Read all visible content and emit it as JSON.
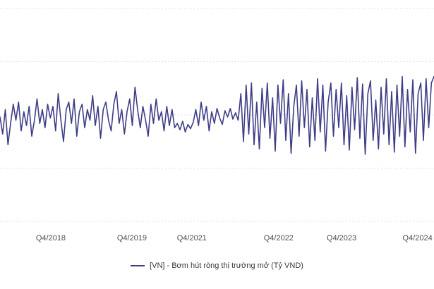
{
  "chart_data": {
    "type": "line",
    "title": "",
    "xlabel": "",
    "ylabel": "",
    "ylim": [
      -100000,
      100000
    ],
    "grid": "dotted-horizontal",
    "grid_values": [
      100000,
      50000,
      0,
      -50000,
      -100000
    ],
    "legend_position": "bottom-center",
    "x_tick_labels": [
      "Q4/2018",
      "Q4/2019",
      "Q4/2021",
      "Q4/2022",
      "Q4/2023",
      "Q4/2024"
    ],
    "x_tick_positions": [
      0.117,
      0.304,
      0.442,
      0.642,
      0.787,
      0.962
    ],
    "series": [
      {
        "name": "[VN] - Bơm hút ròng thị trường mở (Tỷ VND)",
        "values": [
          -2000,
          -18000,
          5000,
          -28000,
          -8000,
          10000,
          -5000,
          12000,
          -15000,
          3000,
          -10000,
          8000,
          -20000,
          -5000,
          15000,
          -8000,
          5000,
          -12000,
          10000,
          -3000,
          8000,
          -15000,
          20000,
          -5000,
          -25000,
          5000,
          12000,
          -8000,
          15000,
          -20000,
          3000,
          10000,
          -12000,
          5000,
          -5000,
          18000,
          -10000,
          8000,
          -22000,
          5000,
          12000,
          -5000,
          -15000,
          10000,
          22000,
          -8000,
          5000,
          -18000,
          3000,
          15000,
          -10000,
          26000,
          5000,
          -12000,
          8000,
          -5000,
          -20000,
          10000,
          -8000,
          15000,
          -5000,
          3000,
          -15000,
          8000,
          -10000,
          5000,
          -12000,
          -8000,
          -14000,
          -6000,
          -16000,
          -9000,
          -13000,
          -7000,
          5000,
          -10000,
          12000,
          -5000,
          8000,
          -15000,
          3000,
          -8000,
          6000,
          -3000,
          -9000,
          4000,
          -2000,
          6000,
          -4000,
          2000,
          -5000,
          20000,
          -25000,
          28000,
          -18000,
          30000,
          -28000,
          12000,
          -32000,
          25000,
          -12000,
          30000,
          -22000,
          16000,
          -34000,
          28000,
          -8000,
          33000,
          -24000,
          20000,
          -36000,
          8000,
          28000,
          -20000,
          32000,
          -12000,
          24000,
          -30000,
          16000,
          -24000,
          34000,
          -16000,
          28000,
          -34000,
          12000,
          30000,
          -20000,
          24000,
          -12000,
          30000,
          -28000,
          18000,
          -33000,
          26000,
          -14000,
          35000,
          -22000,
          29000,
          -37000,
          20000,
          32000,
          -24000,
          14000,
          -32000,
          26000,
          -18000,
          34000,
          -28000,
          22000,
          -35000,
          28000,
          -20000,
          36000,
          -30000,
          24000,
          -16000,
          33000,
          -36000,
          20000,
          30000,
          -24000,
          34000,
          -12000,
          30000,
          36000
        ]
      }
    ]
  },
  "legend": {
    "label": "[VN] - Bơm hút ròng thị trường mở (Tỷ VND)"
  },
  "colors": {
    "line": "#3e3e87",
    "grid": "#d8d8d8",
    "tick_label": "#4d4d4d",
    "legend_text": "#3a3a3a",
    "background": "#ffffff"
  }
}
